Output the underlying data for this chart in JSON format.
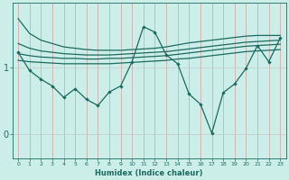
{
  "xlabel": "Humidex (Indice chaleur)",
  "xlim": [
    -0.5,
    23.5
  ],
  "ylim": [
    -0.35,
    1.95
  ],
  "yticks": [
    0,
    1
  ],
  "ytick_labels": [
    "0",
    "1"
  ],
  "xticks": [
    0,
    1,
    2,
    3,
    4,
    5,
    6,
    7,
    8,
    9,
    10,
    11,
    12,
    13,
    14,
    15,
    16,
    17,
    18,
    19,
    20,
    21,
    22,
    23
  ],
  "bg_color": "#cceee8",
  "line_color": "#1a6b60",
  "grid_color_v": "#d4a0a0",
  "grid_color_h": "#c8c8c8",
  "smooth_lines": [
    {
      "x": [
        0,
        1,
        2,
        3,
        4,
        5,
        6,
        7,
        8,
        9,
        10,
        11,
        12,
        13,
        14,
        15,
        16,
        17,
        18,
        19,
        20,
        21,
        22,
        23
      ],
      "y": [
        1.72,
        1.5,
        1.4,
        1.35,
        1.3,
        1.28,
        1.26,
        1.25,
        1.25,
        1.25,
        1.26,
        1.27,
        1.28,
        1.3,
        1.33,
        1.36,
        1.38,
        1.4,
        1.42,
        1.44,
        1.46,
        1.47,
        1.47,
        1.47
      ]
    },
    {
      "x": [
        0,
        1,
        2,
        3,
        4,
        5,
        6,
        7,
        8,
        9,
        10,
        11,
        12,
        13,
        14,
        15,
        16,
        17,
        18,
        19,
        20,
        21,
        22,
        23
      ],
      "y": [
        1.35,
        1.28,
        1.24,
        1.22,
        1.2,
        1.19,
        1.18,
        1.18,
        1.18,
        1.19,
        1.2,
        1.21,
        1.22,
        1.23,
        1.25,
        1.27,
        1.29,
        1.31,
        1.33,
        1.35,
        1.37,
        1.38,
        1.39,
        1.4
      ]
    },
    {
      "x": [
        0,
        1,
        2,
        3,
        4,
        5,
        6,
        7,
        8,
        9,
        10,
        11,
        12,
        13,
        14,
        15,
        16,
        17,
        18,
        19,
        20,
        21,
        22,
        23
      ],
      "y": [
        1.2,
        1.17,
        1.15,
        1.14,
        1.13,
        1.13,
        1.12,
        1.12,
        1.13,
        1.13,
        1.14,
        1.15,
        1.16,
        1.17,
        1.19,
        1.21,
        1.23,
        1.25,
        1.27,
        1.29,
        1.31,
        1.32,
        1.33,
        1.34
      ]
    },
    {
      "x": [
        0,
        1,
        2,
        3,
        4,
        5,
        6,
        7,
        8,
        9,
        10,
        11,
        12,
        13,
        14,
        15,
        16,
        17,
        18,
        19,
        20,
        21,
        22,
        23
      ],
      "y": [
        1.1,
        1.08,
        1.07,
        1.06,
        1.05,
        1.05,
        1.05,
        1.05,
        1.05,
        1.06,
        1.07,
        1.08,
        1.09,
        1.1,
        1.12,
        1.13,
        1.15,
        1.17,
        1.19,
        1.21,
        1.23,
        1.24,
        1.25,
        1.26
      ]
    }
  ],
  "volatile_line": {
    "x": [
      0,
      1,
      2,
      3,
      4,
      5,
      6,
      7,
      8,
      9,
      10,
      11,
      12,
      13,
      14,
      15,
      16,
      17,
      18,
      19,
      20,
      21,
      22,
      23
    ],
    "y": [
      1.22,
      0.95,
      0.82,
      0.72,
      0.55,
      0.68,
      0.52,
      0.43,
      0.63,
      0.72,
      1.08,
      1.6,
      1.52,
      1.18,
      1.05,
      0.6,
      0.45,
      0.02,
      0.62,
      0.75,
      0.98,
      1.32,
      1.08,
      1.43
    ]
  }
}
